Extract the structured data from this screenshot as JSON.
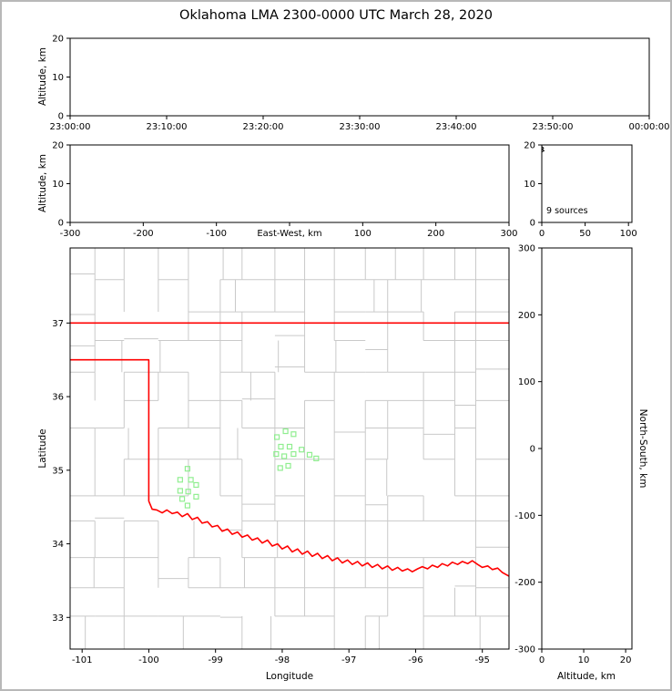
{
  "title": "Oklahoma LMA 2300-0000 UTC March 28, 2020",
  "colors": {
    "state_border": "#ff0000",
    "county_lines": "#c9c9c9",
    "sources": "#90ee90",
    "axis": "#000000"
  },
  "chart_data": [
    {
      "id": "time_height",
      "type": "scatter",
      "xlabel": "",
      "ylabel": "Altitude, km",
      "xlim": [
        0,
        3600
      ],
      "ylim": [
        0,
        20
      ],
      "xticks": [
        0,
        600,
        1200,
        1800,
        2400,
        3000,
        3600
      ],
      "xtick_labels": [
        "23:00:00",
        "23:10:00",
        "23:20:00",
        "23:30:00",
        "23:40:00",
        "23:50:00",
        "00:00:00"
      ],
      "yticks": [
        0,
        10,
        20
      ],
      "points": []
    },
    {
      "id": "ew_height",
      "type": "scatter",
      "xlabel": "East-West, km",
      "ylabel": "Altitude, km",
      "xlim": [
        -300,
        300
      ],
      "ylim": [
        0,
        20
      ],
      "xticks": [
        -300,
        -200,
        -100,
        0,
        100,
        200,
        300
      ],
      "xtick_labels": [
        "-300",
        "-200",
        "-100",
        "East-West, km",
        "100",
        "200",
        "300"
      ],
      "yticks": [
        0,
        10,
        20
      ],
      "points": []
    },
    {
      "id": "alt_histogram",
      "type": "line",
      "xlabel": "",
      "ylabel": "",
      "xlim": [
        0,
        104
      ],
      "ylim": [
        0,
        20
      ],
      "xticks": [
        0,
        50,
        100
      ],
      "yticks": [
        0,
        10,
        20
      ],
      "annotation": "9 sources",
      "line": [
        [
          0,
          19.6
        ],
        [
          2,
          19.2
        ],
        [
          0.5,
          18.9
        ],
        [
          2.5,
          18.5
        ],
        [
          0,
          18.2
        ]
      ]
    },
    {
      "id": "plan_view",
      "type": "scatter",
      "xlabel": "Longitude",
      "ylabel": "Latitude",
      "xlim": [
        -101.18,
        -94.6
      ],
      "ylim": [
        32.57,
        38.02
      ],
      "xticks": [
        -101,
        -100,
        -99,
        -98,
        -97,
        -96,
        -95
      ],
      "yticks": [
        33,
        34,
        35,
        36,
        37
      ],
      "points": [
        [
          -99.42,
          35.02
        ],
        [
          -99.53,
          34.87
        ],
        [
          -99.37,
          34.87
        ],
        [
          -99.29,
          34.8
        ],
        [
          -99.53,
          34.72
        ],
        [
          -99.41,
          34.71
        ],
        [
          -99.29,
          34.64
        ],
        [
          -99.42,
          34.52
        ],
        [
          -99.5,
          34.61
        ],
        [
          -98.08,
          35.45
        ],
        [
          -97.95,
          35.53
        ],
        [
          -97.83,
          35.49
        ],
        [
          -98.02,
          35.32
        ],
        [
          -97.89,
          35.32
        ],
        [
          -98.09,
          35.22
        ],
        [
          -97.97,
          35.19
        ],
        [
          -97.83,
          35.22
        ],
        [
          -97.71,
          35.28
        ],
        [
          -97.59,
          35.21
        ],
        [
          -97.49,
          35.16
        ],
        [
          -97.91,
          35.06
        ],
        [
          -98.03,
          35.03
        ]
      ],
      "state_border": [
        [
          [
            -101.18,
            37.0
          ],
          [
            -94.6,
            37.0
          ]
        ],
        [
          [
            -101.18,
            36.5
          ],
          [
            -100.0,
            36.5
          ],
          [
            -100.0,
            34.58
          ],
          [
            -99.95,
            34.47
          ],
          [
            -99.88,
            34.46
          ],
          [
            -99.8,
            34.42
          ],
          [
            -99.73,
            34.46
          ],
          [
            -99.65,
            34.41
          ],
          [
            -99.57,
            34.43
          ],
          [
            -99.5,
            34.37
          ],
          [
            -99.42,
            34.41
          ],
          [
            -99.35,
            34.33
          ],
          [
            -99.27,
            34.36
          ],
          [
            -99.2,
            34.28
          ],
          [
            -99.12,
            34.3
          ],
          [
            -99.05,
            34.23
          ],
          [
            -98.97,
            34.25
          ],
          [
            -98.9,
            34.17
          ],
          [
            -98.82,
            34.2
          ],
          [
            -98.75,
            34.13
          ],
          [
            -98.67,
            34.16
          ],
          [
            -98.6,
            34.09
          ],
          [
            -98.52,
            34.12
          ],
          [
            -98.45,
            34.05
          ],
          [
            -98.37,
            34.08
          ],
          [
            -98.3,
            34.01
          ],
          [
            -98.22,
            34.05
          ],
          [
            -98.15,
            33.97
          ],
          [
            -98.07,
            34.0
          ],
          [
            -98.0,
            33.93
          ],
          [
            -97.92,
            33.97
          ],
          [
            -97.85,
            33.89
          ],
          [
            -97.77,
            33.93
          ],
          [
            -97.7,
            33.86
          ],
          [
            -97.62,
            33.9
          ],
          [
            -97.55,
            33.83
          ],
          [
            -97.47,
            33.87
          ],
          [
            -97.4,
            33.8
          ],
          [
            -97.32,
            33.84
          ],
          [
            -97.25,
            33.77
          ],
          [
            -97.17,
            33.81
          ],
          [
            -97.1,
            33.74
          ],
          [
            -97.02,
            33.78
          ],
          [
            -96.95,
            33.72
          ],
          [
            -96.87,
            33.76
          ],
          [
            -96.8,
            33.7
          ],
          [
            -96.72,
            33.74
          ],
          [
            -96.65,
            33.68
          ],
          [
            -96.57,
            33.72
          ],
          [
            -96.5,
            33.66
          ],
          [
            -96.42,
            33.7
          ],
          [
            -96.35,
            33.64
          ],
          [
            -96.27,
            33.68
          ],
          [
            -96.2,
            33.63
          ],
          [
            -96.12,
            33.66
          ],
          [
            -96.05,
            33.62
          ],
          [
            -95.97,
            33.66
          ],
          [
            -95.9,
            33.69
          ],
          [
            -95.82,
            33.66
          ],
          [
            -95.75,
            33.71
          ],
          [
            -95.67,
            33.68
          ],
          [
            -95.6,
            33.73
          ],
          [
            -95.52,
            33.7
          ],
          [
            -95.45,
            33.75
          ],
          [
            -95.37,
            33.72
          ],
          [
            -95.3,
            33.76
          ],
          [
            -95.22,
            33.73
          ],
          [
            -95.15,
            33.77
          ],
          [
            -95.07,
            33.72
          ],
          [
            -95.0,
            33.68
          ],
          [
            -94.92,
            33.7
          ],
          [
            -94.85,
            33.65
          ],
          [
            -94.77,
            33.67
          ],
          [
            -94.7,
            33.61
          ],
          [
            -94.6,
            33.56
          ]
        ]
      ]
    },
    {
      "id": "ns_height",
      "type": "scatter",
      "xlabel": "Altitude, km",
      "ylabel": "North-South, km",
      "xlim": [
        0,
        21.5
      ],
      "ylim": [
        -300,
        300
      ],
      "xticks": [
        0,
        10,
        20
      ],
      "yticks": [
        -300,
        -200,
        -100,
        0,
        100,
        200,
        300
      ],
      "points": []
    }
  ]
}
